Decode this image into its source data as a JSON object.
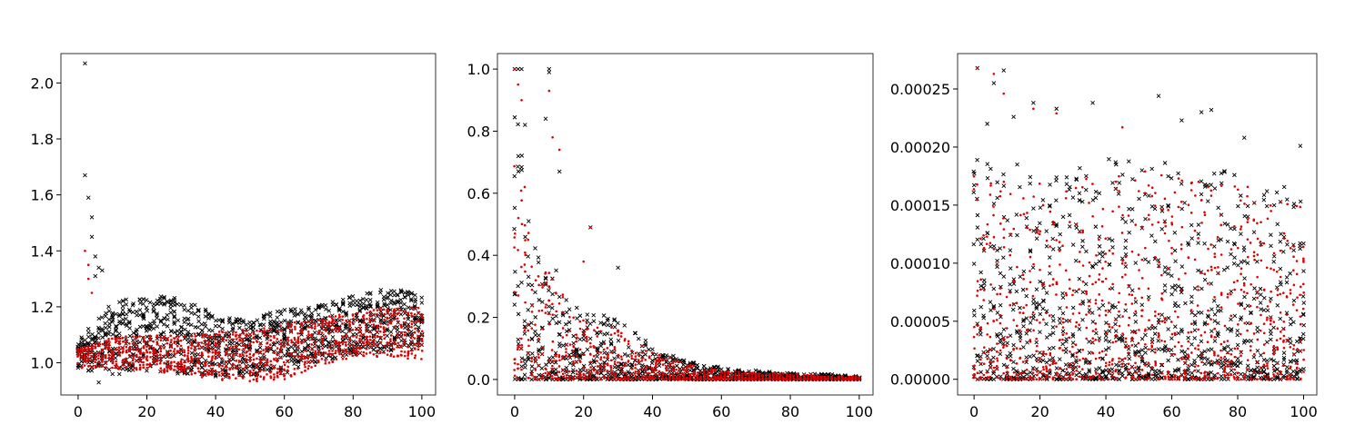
{
  "colors": {
    "series_a": "#000000",
    "series_b": "#e00000",
    "axes": "#000000",
    "background": "#ffffff"
  },
  "chart_data": [
    {
      "type": "scatter",
      "title": "",
      "xlabel": "",
      "ylabel": "",
      "xlim": [
        -5,
        104
      ],
      "ylim": [
        0.885,
        2.105
      ],
      "xticks": [
        0,
        20,
        40,
        60,
        80,
        100
      ],
      "yticks": [
        1.0,
        1.2,
        1.4,
        1.6,
        1.8,
        2.0
      ],
      "ytick_labels": [
        "1.0",
        "1.2",
        "1.4",
        "1.6",
        "1.8",
        "2.0"
      ],
      "xtick_labels": [
        "0",
        "20",
        "40",
        "60",
        "80",
        "100"
      ],
      "grid": false,
      "series": [
        {
          "marker": "x",
          "color": "#000000",
          "outliers": [
            [
              2,
              2.07
            ],
            [
              2,
              1.67
            ],
            [
              3,
              1.59
            ],
            [
              4,
              1.52
            ],
            [
              4,
              1.45
            ],
            [
              5,
              1.38
            ],
            [
              6,
              1.34
            ],
            [
              7,
              1.33
            ],
            [
              5,
              1.31
            ],
            [
              6,
              0.93
            ],
            [
              10,
              0.96
            ],
            [
              12,
              0.96
            ]
          ],
          "bands": [
            {
              "x": [
                0,
                10,
                20,
                30,
                40,
                50,
                60,
                70,
                80,
                90,
                100
              ],
              "low": [
                0.97,
                0.97,
                0.97,
                0.96,
                0.95,
                0.95,
                0.96,
                1.0,
                1.03,
                1.04,
                1.05
              ],
              "high": [
                1.08,
                1.22,
                1.24,
                1.24,
                1.17,
                1.16,
                1.19,
                1.21,
                1.24,
                1.27,
                1.25
              ]
            }
          ]
        },
        {
          "marker": "dot",
          "color": "#e00000",
          "outliers": [
            [
              2,
              1.4
            ],
            [
              3,
              1.35
            ],
            [
              3,
              1.3
            ],
            [
              4,
              1.25
            ]
          ],
          "bands": [
            {
              "x": [
                0,
                10,
                20,
                30,
                40,
                50,
                60,
                70,
                80,
                90,
                100
              ],
              "low": [
                0.98,
                0.98,
                0.97,
                0.96,
                0.94,
                0.93,
                0.94,
                0.99,
                1.02,
                1.02,
                1.01
              ],
              "high": [
                1.05,
                1.09,
                1.1,
                1.1,
                1.11,
                1.12,
                1.14,
                1.16,
                1.18,
                1.2,
                1.2
              ]
            }
          ]
        }
      ]
    },
    {
      "type": "scatter",
      "title": "",
      "xlabel": "",
      "ylabel": "",
      "xlim": [
        -5,
        104
      ],
      "ylim": [
        -0.05,
        1.05
      ],
      "xticks": [
        0,
        20,
        40,
        60,
        80,
        100
      ],
      "yticks": [
        0.0,
        0.2,
        0.4,
        0.6,
        0.8,
        1.0
      ],
      "ytick_labels": [
        "0.0",
        "0.2",
        "0.4",
        "0.6",
        "0.8",
        "1.0"
      ],
      "xtick_labels": [
        "0",
        "20",
        "40",
        "60",
        "80",
        "100"
      ],
      "grid": false,
      "series": [
        {
          "marker": "x",
          "color": "#000000",
          "outliers": [
            [
              0,
              1.0
            ],
            [
              1,
              1.0
            ],
            [
              2,
              1.0
            ],
            [
              10,
              1.0
            ],
            [
              10,
              0.99
            ],
            [
              30,
              0.36
            ],
            [
              22,
              0.49
            ],
            [
              13,
              0.67
            ],
            [
              3,
              0.82
            ],
            [
              9,
              0.84
            ]
          ],
          "bands": [
            {
              "x": [
                0,
                5,
                10,
                15,
                20,
                30,
                40,
                50,
                60,
                70,
                80,
                90,
                100
              ],
              "low": [
                0,
                0,
                0,
                0,
                0,
                0,
                0,
                0,
                0,
                0,
                0,
                0,
                0
              ],
              "high": [
                1.0,
                0.45,
                0.4,
                0.3,
                0.22,
                0.2,
                0.11,
                0.06,
                0.04,
                0.03,
                0.02,
                0.02,
                0.01
              ]
            }
          ]
        },
        {
          "marker": "dot",
          "color": "#e00000",
          "outliers": [
            [
              0,
              1.0
            ],
            [
              1,
              0.95
            ],
            [
              2,
              0.9
            ],
            [
              10,
              0.93
            ],
            [
              11,
              0.78
            ],
            [
              13,
              0.74
            ],
            [
              22,
              0.49
            ],
            [
              20,
              0.38
            ]
          ],
          "bands": [
            {
              "x": [
                0,
                5,
                10,
                15,
                20,
                30,
                40,
                50,
                60,
                70,
                80,
                90,
                100
              ],
              "low": [
                0,
                0,
                0,
                0,
                0,
                0,
                0,
                0,
                0,
                0,
                0,
                0,
                0
              ],
              "high": [
                1.0,
                0.4,
                0.36,
                0.26,
                0.2,
                0.16,
                0.09,
                0.05,
                0.03,
                0.02,
                0.02,
                0.01,
                0.01
              ]
            }
          ]
        }
      ]
    },
    {
      "type": "scatter",
      "title": "",
      "xlabel": "",
      "ylabel": "",
      "xlim": [
        -5,
        104
      ],
      "ylim": [
        -1.35e-05,
        0.0002805
      ],
      "xticks": [
        0,
        20,
        40,
        60,
        80,
        100
      ],
      "yticks": [
        0.0,
        5e-05,
        0.0001,
        0.00015,
        0.0002,
        0.00025
      ],
      "ytick_labels": [
        "0.00000",
        "0.00005",
        "0.00010",
        "0.00015",
        "0.00020",
        "0.00025"
      ],
      "xtick_labels": [
        "0",
        "20",
        "40",
        "60",
        "80",
        "100"
      ],
      "grid": false,
      "series": [
        {
          "marker": "x",
          "color": "#000000",
          "outliers": [
            [
              1,
              0.000268
            ],
            [
              9,
              0.000266
            ],
            [
              6,
              0.000255
            ],
            [
              4,
              0.00022
            ],
            [
              12,
              0.000226
            ],
            [
              18,
              0.000238
            ],
            [
              25,
              0.000233
            ],
            [
              36,
              0.000238
            ],
            [
              56,
              0.000244
            ],
            [
              63,
              0.000223
            ],
            [
              69,
              0.00023
            ],
            [
              72,
              0.000232
            ],
            [
              82,
              0.000208
            ],
            [
              99,
              0.000201
            ]
          ],
          "bands": [
            {
              "x": [
                0,
                10,
                20,
                30,
                40,
                50,
                60,
                70,
                80,
                90,
                100
              ],
              "low": [
                0,
                0,
                0,
                0,
                0,
                0,
                0,
                0,
                0,
                0,
                0
              ],
              "high": [
                0.00019,
                0.00019,
                0.00018,
                0.00018,
                0.00019,
                0.00019,
                0.00019,
                0.00018,
                0.00018,
                0.00017,
                0.00016
              ]
            }
          ]
        },
        {
          "marker": "dot",
          "color": "#e00000",
          "outliers": [
            [
              1,
              0.000268
            ],
            [
              6,
              0.000263
            ],
            [
              9,
              0.000246
            ],
            [
              18,
              0.000233
            ],
            [
              25,
              0.000229
            ],
            [
              45,
              0.000217
            ]
          ],
          "bands": [
            {
              "x": [
                0,
                10,
                20,
                30,
                40,
                50,
                60,
                70,
                80,
                90,
                100
              ],
              "low": [
                0,
                0,
                0,
                0,
                0,
                0,
                0,
                0,
                0,
                0,
                0
              ],
              "high": [
                0.00018,
                0.00018,
                0.00017,
                0.00017,
                0.00018,
                0.00018,
                0.00018,
                0.00017,
                0.00017,
                0.00016,
                0.00015
              ]
            }
          ]
        }
      ]
    }
  ]
}
